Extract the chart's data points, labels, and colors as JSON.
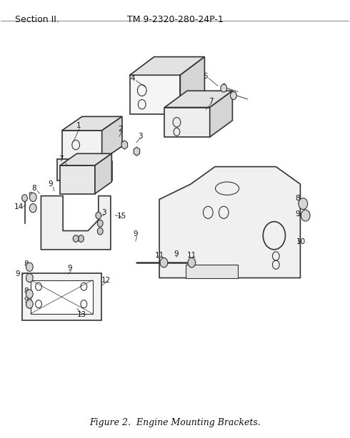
{
  "header_left": "Section II.",
  "header_right": "TM 9-2320-280-24P-1",
  "caption": "Figure 2.  Engine Mounting Brackets.",
  "bg_color": "#ffffff",
  "header_fontsize": 9,
  "caption_fontsize": 9,
  "fig_width": 4.9,
  "fig_height": 6.14,
  "dpi": 100,
  "line_color": "#333333",
  "text_color": "#111111"
}
